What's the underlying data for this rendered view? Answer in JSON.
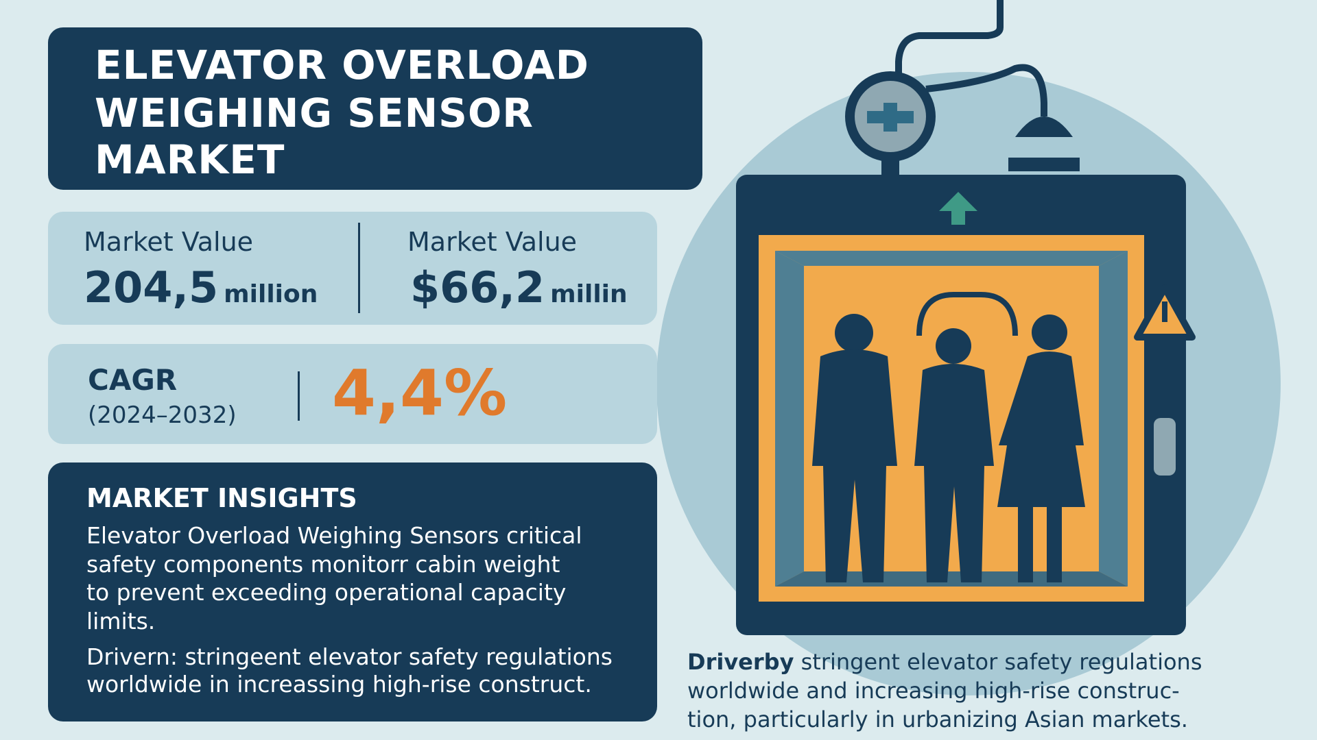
{
  "header": {
    "title_lines": [
      "ELEVATOR OVERLOAD",
      "WEIGHING SENSOR",
      "MARKET"
    ]
  },
  "stats": [
    {
      "label": "Market Value",
      "value": "204,5",
      "unit": "million"
    },
    {
      "label": "Market Value",
      "value": "$66,2",
      "unit": "millin"
    }
  ],
  "cagr": {
    "label": "CAGR",
    "period": "(2024–2032)",
    "value": "4,4%"
  },
  "insights": {
    "title": "MARKET INSIGHTS",
    "paragraphs": [
      [
        "Elevator Overload Weighing Sensors critical",
        "safety components monitorr cabin weight",
        "to prevent exceeding operational capacity",
        "limits."
      ],
      [
        "Drivern: stringeent elevator safety regulations",
        "worldwide in increassing high-rise construct."
      ]
    ]
  },
  "caption": {
    "lead": "Driverby",
    "lines": [
      " stringent elevator safety regulations",
      "worldwide and increasing high-rise construc-",
      "tion, particularly in urbanizing Asian markets."
    ]
  }
}
